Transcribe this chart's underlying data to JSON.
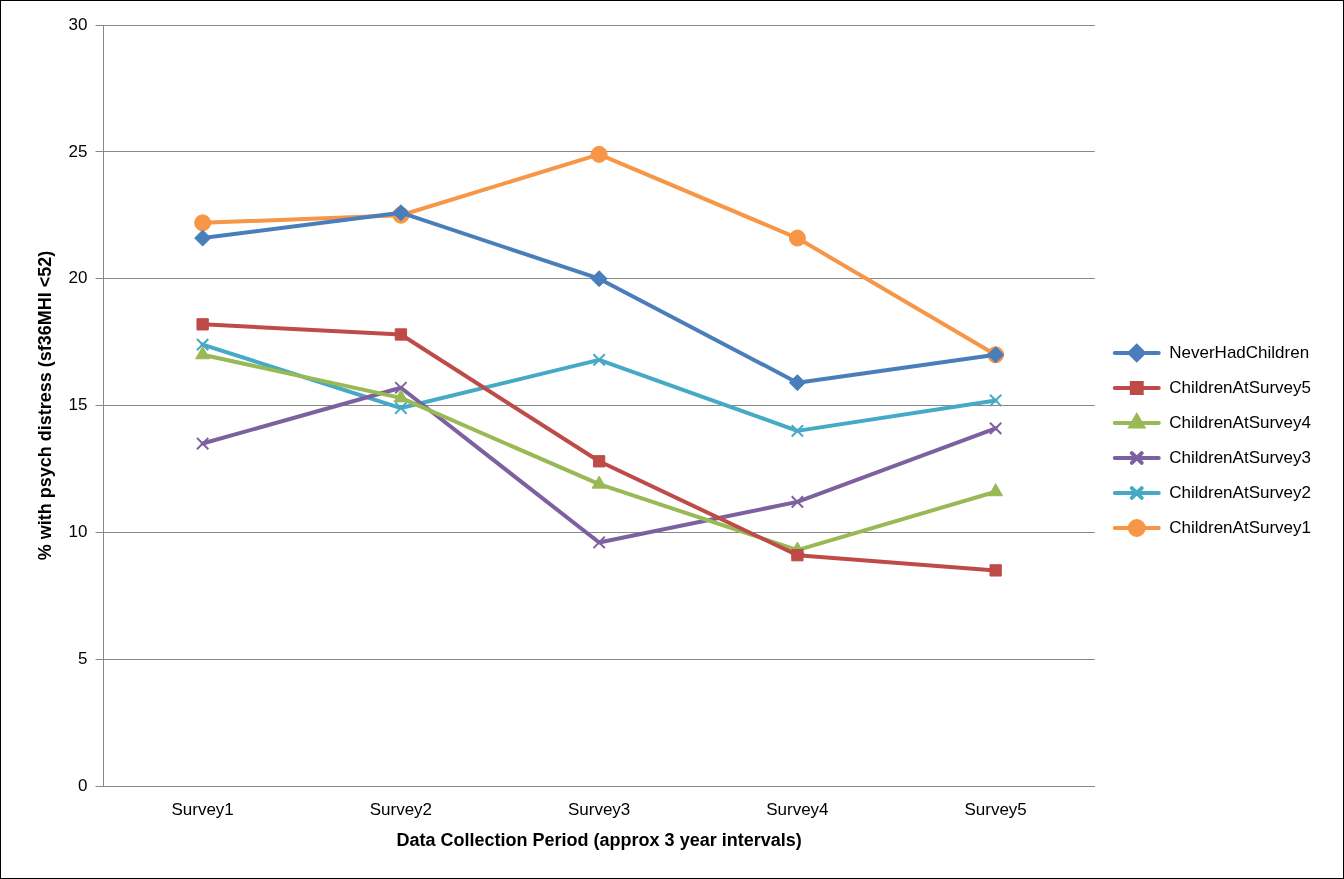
{
  "chart_data": {
    "type": "line",
    "xlabel": "Data Collection Period (approx 3 year intervals)",
    "ylabel": "% with psych distress (sf36MHI <52)",
    "categories": [
      "Survey1",
      "Survey2",
      "Survey3",
      "Survey4",
      "Survey5"
    ],
    "series": [
      {
        "name": "NeverHadChildren",
        "color": "#4a7ebb",
        "marker": "diamond",
        "values": [
          21.6,
          22.6,
          20.0,
          15.9,
          17.0
        ]
      },
      {
        "name": "ChildrenAtSurvey5",
        "color": "#be4b48",
        "marker": "square",
        "values": [
          18.2,
          17.8,
          12.8,
          9.1,
          8.5
        ]
      },
      {
        "name": "ChildrenAtSurvey4",
        "color": "#98b954",
        "marker": "triangle",
        "values": [
          17.0,
          15.3,
          11.9,
          9.3,
          11.6
        ]
      },
      {
        "name": "ChildrenAtSurvey3",
        "color": "#7d60a0",
        "marker": "cross",
        "values": [
          13.5,
          15.7,
          9.6,
          11.2,
          14.1
        ]
      },
      {
        "name": "ChildrenAtSurvey2",
        "color": "#46aac5",
        "marker": "cross",
        "values": [
          17.4,
          14.9,
          16.8,
          14.0,
          15.2
        ]
      },
      {
        "name": "ChildrenAtSurvey1",
        "color": "#f79646",
        "marker": "circle",
        "values": [
          22.2,
          22.5,
          24.9,
          21.6,
          17.0
        ]
      }
    ],
    "ylim": [
      0,
      30
    ],
    "yticks": [
      0,
      5,
      10,
      15,
      20,
      25,
      30
    ],
    "grid": "y",
    "legend": "right",
    "line_style": "solid"
  }
}
